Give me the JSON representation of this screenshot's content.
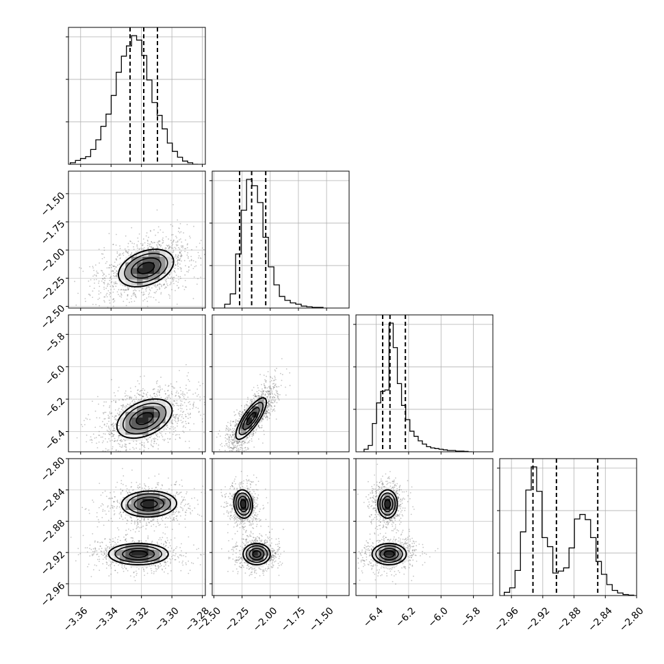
{
  "chart_data": {
    "type": "corner",
    "title": "",
    "grid": true,
    "quantiles": [
      0.16,
      0.5,
      0.84
    ],
    "parameters": [
      {
        "label": "",
        "range": [
          -3.368,
          -3.278
        ],
        "ticks": [
          -3.36,
          -3.34,
          -3.32,
          -3.3,
          -3.28
        ],
        "tick_labels": [
          "−3.36",
          "−3.34",
          "−3.32",
          "−3.30",
          "−3.28"
        ],
        "quantile_values": [
          -3.3275,
          -3.3185,
          -3.3095
        ],
        "histogram": {
          "bins": [
            -3.3668,
            -3.3634,
            -3.3601,
            -3.3567,
            -3.3534,
            -3.35,
            -3.3467,
            -3.3433,
            -3.3399,
            -3.3366,
            -3.3332,
            -3.3299,
            -3.3265,
            -3.3232,
            -3.3198,
            -3.3165,
            -3.3131,
            -3.3097,
            -3.3064,
            -3.303,
            -3.2997,
            -3.2963,
            -3.293,
            -3.2896,
            -3.2863,
            -3.2829
          ],
          "counts": [
            0.012,
            0.03,
            0.045,
            0.06,
            0.115,
            0.19,
            0.295,
            0.39,
            0.535,
            0.715,
            0.84,
            0.92,
            1.0,
            0.965,
            0.845,
            0.655,
            0.48,
            0.38,
            0.275,
            0.165,
            0.1,
            0.055,
            0.025,
            0.012,
            0.0
          ]
        }
      },
      {
        "label": "",
        "range": [
          -2.515,
          -1.3
        ],
        "ticks": [
          -2.5,
          -2.25,
          -2.0,
          -1.75,
          -1.5
        ],
        "tick_labels": [
          "−2.50",
          "−2.25",
          "−2.00",
          "−1.75",
          "−1.50"
        ],
        "quantile_values": [
          -2.272,
          -2.165,
          -2.04
        ],
        "histogram": {
          "bins": [
            -2.404,
            -2.3555,
            -2.307,
            -2.2585,
            -2.21,
            -2.1615,
            -2.113,
            -2.0645,
            -2.016,
            -1.9675,
            -1.919,
            -1.8705,
            -1.822,
            -1.7735,
            -1.725,
            -1.6765,
            -1.628,
            -1.5795,
            -1.531
          ],
          "counts": [
            0.03,
            0.11,
            0.42,
            0.76,
            1.0,
            0.95,
            0.82,
            0.55,
            0.32,
            0.18,
            0.09,
            0.06,
            0.04,
            0.03,
            0.015,
            0.01,
            0.005,
            0.005
          ]
        }
      },
      {
        "label": "",
        "range": [
          -6.525,
          -5.68
        ],
        "ticks": [
          -6.4,
          -6.2,
          -6.0,
          -5.8
        ],
        "tick_labels": [
          "−6.4",
          "−6.2",
          "−6.0",
          "−5.8"
        ],
        "quantile_values": [
          -6.36,
          -6.315,
          -6.22
        ],
        "histogram": {
          "bins": [
            -6.475,
            -6.4493,
            -6.4236,
            -6.3979,
            -6.3722,
            -6.3465,
            -6.3208,
            -6.2951,
            -6.2694,
            -6.2437,
            -6.218,
            -6.1923,
            -6.1666,
            -6.1409,
            -6.1152,
            -6.0895,
            -6.0638,
            -6.0381,
            -6.0124,
            -5.9867,
            -5.961,
            -5.9353,
            -5.9096,
            -5.8839,
            -5.8582,
            -5.8325,
            -5.8068
          ],
          "counts": [
            0.02,
            0.05,
            0.22,
            0.38,
            0.47,
            0.48,
            1.0,
            0.81,
            0.53,
            0.36,
            0.25,
            0.16,
            0.12,
            0.085,
            0.06,
            0.04,
            0.03,
            0.025,
            0.02,
            0.015,
            0.01,
            0.01,
            0.005,
            0.005,
            0.003,
            0.0
          ]
        }
      },
      {
        "label": "",
        "range": [
          -2.975,
          -2.8
        ],
        "ticks": [
          -2.96,
          -2.92,
          -2.88,
          -2.84,
          -2.8
        ],
        "tick_labels": [
          "−2.96",
          "−2.92",
          "−2.88",
          "−2.84",
          "−2.80"
        ],
        "quantile_values": [
          -2.9325,
          -2.9025,
          -2.8497
        ],
        "histogram": {
          "bins": [
            -2.9692,
            -2.9623,
            -2.9554,
            -2.9485,
            -2.9416,
            -2.9347,
            -2.9278,
            -2.9209,
            -2.914,
            -2.9071,
            -2.9002,
            -2.8933,
            -2.8864,
            -2.8795,
            -2.8726,
            -2.8657,
            -2.8588,
            -2.8519,
            -2.845,
            -2.8381,
            -2.8312,
            -2.8243,
            -2.8174,
            -2.8105,
            -2.8036
          ],
          "counts": [
            0.025,
            0.06,
            0.195,
            0.495,
            0.82,
            1.0,
            0.81,
            0.45,
            0.38,
            0.175,
            0.19,
            0.215,
            0.37,
            0.595,
            0.63,
            0.59,
            0.45,
            0.265,
            0.165,
            0.085,
            0.04,
            0.02,
            0.008,
            0.003
          ]
        }
      }
    ],
    "pairs": [
      {
        "x": 0,
        "y": 1,
        "modes": [
          {
            "center": [
              -3.317,
              -2.16
            ],
            "sd": [
              0.012,
              0.11
            ],
            "rho": 0.35
          }
        ]
      },
      {
        "x": 0,
        "y": 2,
        "modes": [
          {
            "center": [
              -3.318,
              -6.32
            ],
            "sd": [
              0.012,
              0.08
            ],
            "rho": 0.4
          }
        ]
      },
      {
        "x": 1,
        "y": 2,
        "modes": [
          {
            "center": [
              -2.17,
              -6.32
            ],
            "sd": [
              0.09,
              0.085
            ],
            "rho": 0.8
          }
        ]
      },
      {
        "x": 0,
        "y": 3,
        "modes": [
          {
            "center": [
              -3.315,
              -2.858
            ],
            "sd": [
              0.012,
              0.011
            ],
            "rho": 0.05
          },
          {
            "center": [
              -3.322,
              -2.922
            ],
            "sd": [
              0.013,
              0.009
            ],
            "rho": 0.0
          }
        ]
      },
      {
        "x": 1,
        "y": 3,
        "modes": [
          {
            "center": [
              -2.24,
              -2.858
            ],
            "sd": [
              0.055,
              0.012
            ],
            "rho": -0.1
          },
          {
            "center": [
              -2.12,
              -2.922
            ],
            "sd": [
              0.08,
              0.009
            ],
            "rho": 0.0
          }
        ]
      },
      {
        "x": 2,
        "y": 3,
        "modes": [
          {
            "center": [
              -6.33,
              -2.858
            ],
            "sd": [
              0.04,
              0.012
            ],
            "rho": 0.0
          },
          {
            "center": [
              -6.32,
              -2.922
            ],
            "sd": [
              0.07,
              0.009
            ],
            "rho": 0.0
          }
        ]
      }
    ]
  }
}
